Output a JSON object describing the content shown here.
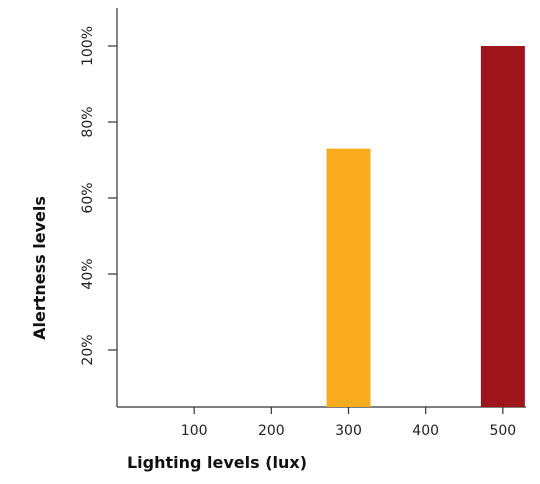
{
  "chart_data": {
    "type": "bar",
    "xlabel": "Lighting levels (lux)",
    "ylabel": "Alertness levels",
    "x_ticks": [
      100,
      200,
      300,
      400,
      500
    ],
    "x_range": [
      0,
      530
    ],
    "y_ticks": [
      20,
      40,
      60,
      80,
      100
    ],
    "y_tick_suffix": "%",
    "ylim": [
      5,
      110
    ],
    "bars": [
      {
        "x": 300,
        "value": 73,
        "color": "#F9AB1E"
      },
      {
        "x": 500,
        "value": 100,
        "color": "#A0141C"
      }
    ],
    "grid": false,
    "legend": "none"
  }
}
